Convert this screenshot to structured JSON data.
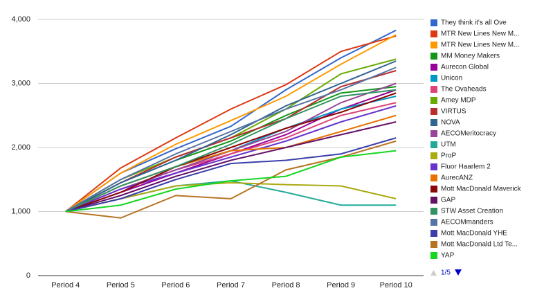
{
  "chart_data": {
    "type": "line",
    "categories": [
      "Period 4",
      "Period 5",
      "Period 6",
      "Period 7",
      "Period 8",
      "Period 9",
      "Period 10"
    ],
    "ylim": [
      0,
      4000
    ],
    "yticks": [
      0,
      {
        "value": 1000,
        "label": "1,000"
      },
      {
        "value": 2000,
        "label": "2,000"
      },
      {
        "value": 3000,
        "label": "3,000"
      },
      {
        "value": 4000,
        "label": "4,000"
      }
    ],
    "grid": true,
    "legend": "right",
    "legend_page": "1/5",
    "series": [
      {
        "name": "They think it's all Ove",
        "color": "#3366cc",
        "values": [
          1000,
          1600,
          1980,
          2330,
          2900,
          3400,
          3830
        ]
      },
      {
        "name": "MTR New Lines New M...",
        "color": "#dc3912",
        "values": [
          1000,
          1680,
          2150,
          2600,
          2980,
          3500,
          3740
        ]
      },
      {
        "name": "MTR New Lines New M...",
        "color": "#ff9900",
        "values": [
          1000,
          1600,
          2050,
          2420,
          2800,
          3300,
          3760
        ]
      },
      {
        "name": "MM Money Makers",
        "color": "#109618",
        "values": [
          1000,
          1450,
          1800,
          2100,
          2500,
          2850,
          2950
        ]
      },
      {
        "name": "Aurecon Global",
        "color": "#990099",
        "values": [
          1000,
          1300,
          1600,
          1900,
          2200,
          2600,
          2900
        ]
      },
      {
        "name": "Unicon",
        "color": "#0099c6",
        "values": [
          1000,
          1400,
          1700,
          1950,
          2300,
          2600,
          2800
        ]
      },
      {
        "name": "The Ovaheads",
        "color": "#dd4477",
        "values": [
          1000,
          1350,
          1650,
          1900,
          2150,
          2500,
          2700
        ]
      },
      {
        "name": "Amey MDP",
        "color": "#66aa00",
        "values": [
          1000,
          1500,
          1850,
          2150,
          2600,
          3150,
          3380
        ]
      },
      {
        "name": "VIRTUS",
        "color": "#b82e2e",
        "values": [
          1000,
          1450,
          1850,
          2150,
          2450,
          2950,
          3200
        ]
      },
      {
        "name": "NOVA",
        "color": "#316395",
        "values": [
          1000,
          1450,
          1800,
          2200,
          2650,
          3000,
          3350
        ]
      },
      {
        "name": "AECOMeritocracy",
        "color": "#994499",
        "values": [
          1000,
          1350,
          1650,
          1950,
          2250,
          2700,
          3000
        ]
      },
      {
        "name": "UTM",
        "color": "#22aa99",
        "values": [
          1000,
          1200,
          1400,
          1480,
          1300,
          1100,
          1100
        ]
      },
      {
        "name": "ProP",
        "color": "#aaaa11",
        "values": [
          1000,
          1200,
          1400,
          1450,
          1420,
          1400,
          1200
        ]
      },
      {
        "name": "Fluor Haarlem 2",
        "color": "#6633cc",
        "values": [
          1000,
          1350,
          1600,
          1850,
          2100,
          2400,
          2650
        ]
      },
      {
        "name": "AurecANZ",
        "color": "#e67300",
        "values": [
          1000,
          1400,
          1700,
          1950,
          2000,
          2250,
          2500
        ]
      },
      {
        "name": "Mott MacDonald Maverick",
        "color": "#8b0707",
        "values": [
          1000,
          1300,
          1700,
          2000,
          2300,
          2550,
          2850
        ]
      },
      {
        "name": "GAP",
        "color": "#651067",
        "values": [
          1000,
          1250,
          1550,
          1800,
          2000,
          2200,
          2400
        ]
      },
      {
        "name": "STW Asset Creation",
        "color": "#329262",
        "values": [
          1000,
          1400,
          1700,
          2050,
          2450,
          2800,
          2900
        ]
      },
      {
        "name": "AECOMmanders",
        "color": "#5574a6",
        "values": [
          1000,
          1500,
          1900,
          2250,
          2600,
          2900,
          3250
        ]
      },
      {
        "name": "Mott MacDonald YHE",
        "color": "#3b3eac",
        "values": [
          1000,
          1200,
          1500,
          1750,
          1800,
          1900,
          2150
        ]
      },
      {
        "name": "Mott MacDonald Ltd Te...",
        "color": "#b77322",
        "values": [
          1000,
          900,
          1250,
          1200,
          1650,
          1850,
          2100
        ]
      },
      {
        "name": "YAP",
        "color": "#16d620",
        "values": [
          1000,
          1100,
          1350,
          1480,
          1550,
          1850,
          1950
        ]
      }
    ]
  }
}
